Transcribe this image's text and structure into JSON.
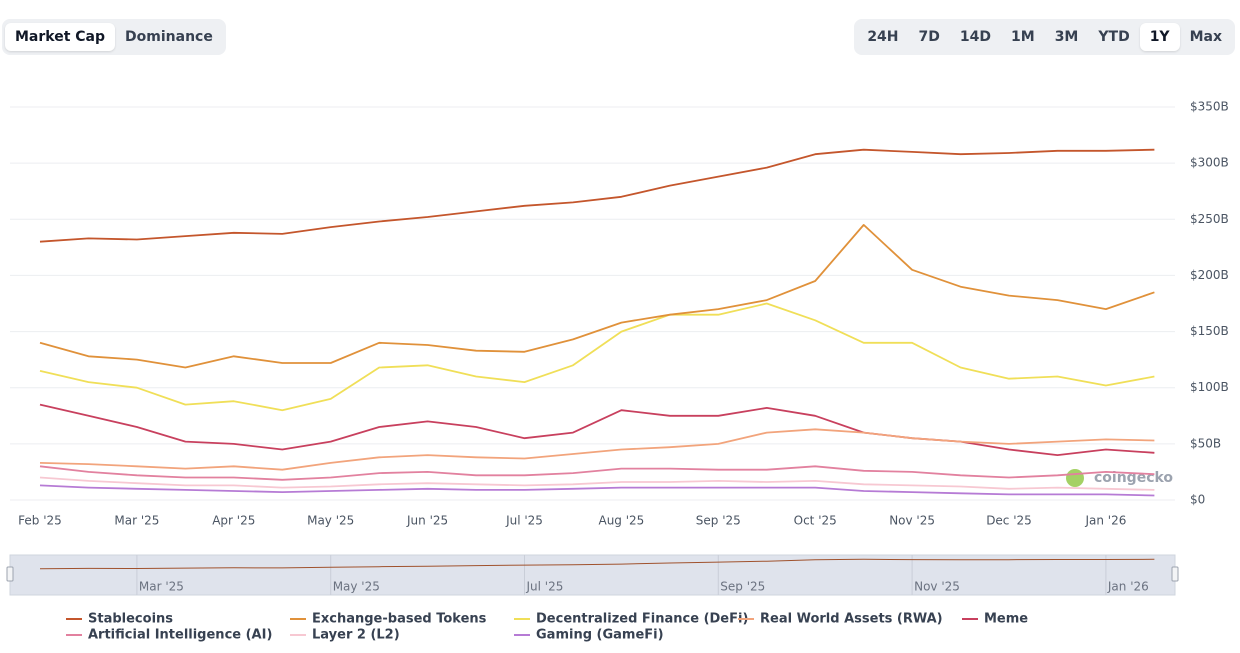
{
  "tabs": {
    "items": [
      "Market Cap",
      "Dominance"
    ],
    "active": 0
  },
  "ranges": {
    "items": [
      "24H",
      "7D",
      "14D",
      "1M",
      "3M",
      "YTD",
      "1Y",
      "Max"
    ],
    "active": 6
  },
  "watermark": "coingecko",
  "chart_data": {
    "type": "line",
    "categories": [
      "Feb '25",
      null,
      "Mar '25",
      null,
      "Apr '25",
      null,
      "May '25",
      null,
      "Jun '25",
      null,
      "Jul '25",
      null,
      "Aug '25",
      null,
      "Sep '25",
      null,
      "Oct '25",
      null,
      "Nov '25",
      null,
      "Dec '25",
      null,
      "Jan '26",
      null
    ],
    "series": [
      {
        "name": "Stablecoins",
        "color": "#c4562c",
        "values": [
          230,
          233,
          232,
          235,
          238,
          237,
          243,
          248,
          252,
          257,
          262,
          265,
          270,
          280,
          288,
          296,
          308,
          312,
          310,
          308,
          309,
          311,
          311,
          312
        ]
      },
      {
        "name": "Exchange-based Tokens",
        "color": "#e0913a",
        "values": [
          140,
          128,
          125,
          118,
          128,
          122,
          122,
          140,
          138,
          133,
          132,
          143,
          158,
          165,
          170,
          178,
          195,
          245,
          205,
          190,
          182,
          178,
          170,
          185
        ]
      },
      {
        "name": "Decentralized Finance (DeFi)",
        "color": "#f0df58",
        "values": [
          115,
          105,
          100,
          85,
          88,
          80,
          90,
          118,
          120,
          110,
          105,
          120,
          150,
          165,
          165,
          175,
          160,
          140,
          140,
          118,
          108,
          110,
          102,
          110
        ]
      },
      {
        "name": "Real World Assets (RWA)",
        "color": "#f2a47c",
        "values": [
          33,
          32,
          30,
          28,
          30,
          27,
          33,
          38,
          40,
          38,
          37,
          41,
          45,
          47,
          50,
          60,
          63,
          60,
          55,
          52,
          50,
          52,
          54,
          53
        ]
      },
      {
        "name": "Meme",
        "color": "#c8405e",
        "values": [
          85,
          75,
          65,
          52,
          50,
          45,
          52,
          65,
          70,
          65,
          55,
          60,
          80,
          75,
          75,
          82,
          75,
          60,
          55,
          52,
          45,
          40,
          45,
          42
        ]
      },
      {
        "name": "Artificial Intelligence (AI)",
        "color": "#e2819f",
        "values": [
          30,
          25,
          22,
          20,
          20,
          18,
          20,
          24,
          25,
          22,
          22,
          24,
          28,
          28,
          27,
          27,
          30,
          26,
          25,
          22,
          20,
          22,
          25,
          23
        ]
      },
      {
        "name": "Layer 2 (L2)",
        "color": "#f7c8d2",
        "values": [
          20,
          17,
          15,
          13,
          13,
          11,
          12,
          14,
          15,
          14,
          13,
          14,
          16,
          16,
          17,
          16,
          17,
          14,
          13,
          12,
          10,
          11,
          10,
          9
        ]
      },
      {
        "name": "Gaming (GameFi)",
        "color": "#b67bd5",
        "values": [
          13,
          11,
          10,
          9,
          8,
          7,
          8,
          9,
          10,
          9,
          9,
          10,
          11,
          11,
          11,
          11,
          11,
          8,
          7,
          6,
          5,
          5,
          5,
          4
        ]
      }
    ],
    "ylim": [
      0,
      350
    ],
    "yticks": [
      {
        "value": 0,
        "label": "$0"
      },
      {
        "value": 50,
        "label": "$50B"
      },
      {
        "value": 100,
        "label": "$100B"
      },
      {
        "value": 150,
        "label": "$150B"
      },
      {
        "value": 200,
        "label": "$200B"
      },
      {
        "value": 250,
        "label": "$250B"
      },
      {
        "value": 300,
        "label": "$300B"
      },
      {
        "value": 350,
        "label": "$350B"
      }
    ],
    "grid": true,
    "legend": "bottom"
  }
}
